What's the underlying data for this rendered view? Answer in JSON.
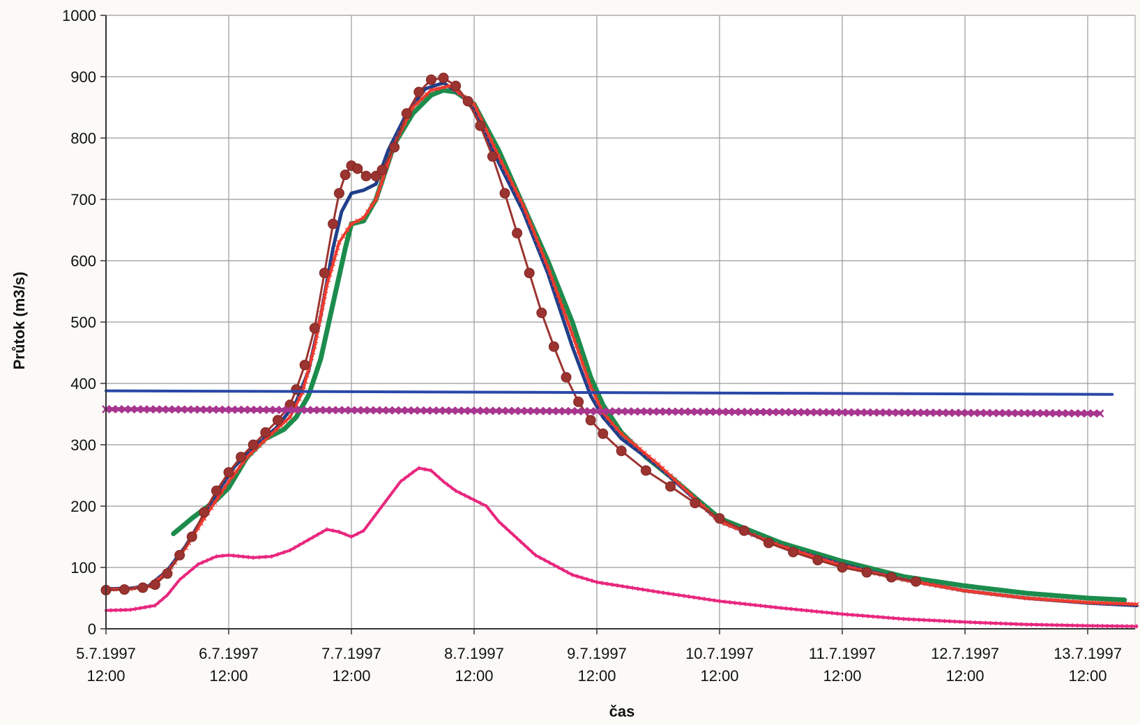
{
  "chart_data": {
    "type": "line",
    "title": "",
    "xlabel": "čas",
    "ylabel": "Průtok (m3/s)",
    "ylim": [
      0,
      1000
    ],
    "yticks": [
      0,
      100,
      200,
      300,
      400,
      500,
      600,
      700,
      800,
      900,
      1000
    ],
    "xlim": [
      0,
      8.4
    ],
    "x_unit": "days from 5.7.1997 12:00",
    "xticks": [
      {
        "x": 0,
        "label": [
          "5.7.1997",
          "12:00"
        ]
      },
      {
        "x": 1,
        "label": [
          "6.7.1997",
          "12:00"
        ]
      },
      {
        "x": 2,
        "label": [
          "7.7.1997",
          "12:00"
        ]
      },
      {
        "x": 3,
        "label": [
          "8.7.1997",
          "12:00"
        ]
      },
      {
        "x": 4,
        "label": [
          "9.7.1997",
          "12:00"
        ]
      },
      {
        "x": 5,
        "label": [
          "10.7.1997",
          "12:00"
        ]
      },
      {
        "x": 6,
        "label": [
          "11.7.1997",
          "12:00"
        ]
      },
      {
        "x": 7,
        "label": [
          "12.7.1997",
          "12:00"
        ]
      },
      {
        "x": 8,
        "label": [
          "13.7.1997",
          "12:00"
        ]
      }
    ],
    "grid": true,
    "legend": "none",
    "series": [
      {
        "color": "#e8277e",
        "marker": "small-dash",
        "width": 4,
        "points": [
          [
            0,
            30
          ],
          [
            0.2,
            31
          ],
          [
            0.4,
            38
          ],
          [
            0.5,
            55
          ],
          [
            0.6,
            80
          ],
          [
            0.75,
            105
          ],
          [
            0.9,
            118
          ],
          [
            1.0,
            120
          ],
          [
            1.2,
            116
          ],
          [
            1.35,
            118
          ],
          [
            1.5,
            128
          ],
          [
            1.65,
            145
          ],
          [
            1.8,
            162
          ],
          [
            1.9,
            158
          ],
          [
            2.0,
            150
          ],
          [
            2.1,
            160
          ],
          [
            2.25,
            200
          ],
          [
            2.4,
            240
          ],
          [
            2.5,
            255
          ],
          [
            2.55,
            262
          ],
          [
            2.65,
            258
          ],
          [
            2.75,
            240
          ],
          [
            2.85,
            225
          ],
          [
            3.0,
            210
          ],
          [
            3.1,
            200
          ],
          [
            3.2,
            175
          ],
          [
            3.5,
            120
          ],
          [
            3.8,
            88
          ],
          [
            4.0,
            76
          ],
          [
            4.5,
            60
          ],
          [
            5.0,
            45
          ],
          [
            5.5,
            34
          ],
          [
            6.0,
            24
          ],
          [
            6.5,
            16
          ],
          [
            7.0,
            11
          ],
          [
            7.5,
            7
          ],
          [
            8.0,
            5
          ],
          [
            8.4,
            4
          ]
        ]
      },
      {
        "color": "#1c8c4c",
        "marker": "none",
        "width": 7,
        "points": [
          [
            0.55,
            155
          ],
          [
            0.7,
            180
          ],
          [
            0.9,
            210
          ],
          [
            1.0,
            230
          ],
          [
            1.15,
            280
          ],
          [
            1.3,
            310
          ],
          [
            1.45,
            325
          ],
          [
            1.55,
            345
          ],
          [
            1.65,
            380
          ],
          [
            1.75,
            440
          ],
          [
            1.85,
            530
          ],
          [
            1.95,
            620
          ],
          [
            2.0,
            660
          ],
          [
            2.1,
            665
          ],
          [
            2.2,
            700
          ],
          [
            2.35,
            790
          ],
          [
            2.5,
            840
          ],
          [
            2.65,
            870
          ],
          [
            2.75,
            878
          ],
          [
            2.85,
            875
          ],
          [
            3.0,
            855
          ],
          [
            3.2,
            780
          ],
          [
            3.4,
            690
          ],
          [
            3.6,
            600
          ],
          [
            3.8,
            500
          ],
          [
            3.95,
            410
          ],
          [
            4.05,
            365
          ],
          [
            4.2,
            320
          ],
          [
            4.4,
            280
          ],
          [
            4.6,
            248
          ],
          [
            5.0,
            180
          ],
          [
            5.5,
            140
          ],
          [
            6.0,
            110
          ],
          [
            6.5,
            85
          ],
          [
            7.0,
            70
          ],
          [
            7.5,
            58
          ],
          [
            8.0,
            50
          ],
          [
            8.3,
            47
          ]
        ]
      },
      {
        "color": "#1f3f8a",
        "marker": "none",
        "width": 5,
        "points": [
          [
            0,
            65
          ],
          [
            0.2,
            66
          ],
          [
            0.35,
            70
          ],
          [
            0.5,
            95
          ],
          [
            0.65,
            135
          ],
          [
            0.8,
            185
          ],
          [
            0.95,
            235
          ],
          [
            1.05,
            265
          ],
          [
            1.2,
            295
          ],
          [
            1.4,
            330
          ],
          [
            1.55,
            370
          ],
          [
            1.65,
            420
          ],
          [
            1.75,
            510
          ],
          [
            1.85,
            620
          ],
          [
            1.92,
            680
          ],
          [
            2.0,
            710
          ],
          [
            2.1,
            715
          ],
          [
            2.2,
            725
          ],
          [
            2.3,
            780
          ],
          [
            2.45,
            840
          ],
          [
            2.6,
            880
          ],
          [
            2.75,
            890
          ],
          [
            2.9,
            870
          ],
          [
            3.0,
            845
          ],
          [
            3.2,
            760
          ],
          [
            3.4,
            680
          ],
          [
            3.6,
            580
          ],
          [
            3.8,
            460
          ],
          [
            3.95,
            380
          ],
          [
            4.05,
            345
          ],
          [
            4.2,
            310
          ],
          [
            4.5,
            265
          ],
          [
            5.0,
            175
          ],
          [
            5.5,
            135
          ],
          [
            6.0,
            105
          ],
          [
            6.5,
            80
          ],
          [
            7.0,
            62
          ],
          [
            7.5,
            50
          ],
          [
            8.0,
            42
          ],
          [
            8.4,
            38
          ]
        ]
      },
      {
        "color": "#ee3b2e",
        "marker": "small-x",
        "width": 4,
        "points": [
          [
            0,
            64
          ],
          [
            0.2,
            65
          ],
          [
            0.35,
            69
          ],
          [
            0.5,
            92
          ],
          [
            0.65,
            132
          ],
          [
            0.8,
            180
          ],
          [
            1.0,
            240
          ],
          [
            1.15,
            280
          ],
          [
            1.35,
            318
          ],
          [
            1.5,
            345
          ],
          [
            1.6,
            385
          ],
          [
            1.7,
            460
          ],
          [
            1.8,
            560
          ],
          [
            1.9,
            630
          ],
          [
            2.0,
            660
          ],
          [
            2.1,
            670
          ],
          [
            2.2,
            700
          ],
          [
            2.35,
            790
          ],
          [
            2.5,
            850
          ],
          [
            2.65,
            878
          ],
          [
            2.8,
            885
          ],
          [
            3.0,
            855
          ],
          [
            3.2,
            770
          ],
          [
            3.4,
            690
          ],
          [
            3.6,
            590
          ],
          [
            3.8,
            480
          ],
          [
            3.95,
            395
          ],
          [
            4.05,
            352
          ],
          [
            4.2,
            318
          ],
          [
            4.5,
            268
          ],
          [
            5.0,
            175
          ],
          [
            5.5,
            135
          ],
          [
            6.0,
            103
          ],
          [
            6.5,
            80
          ],
          [
            7.0,
            62
          ],
          [
            7.5,
            50
          ],
          [
            8.0,
            43
          ],
          [
            8.4,
            40
          ]
        ]
      },
      {
        "color": "#9b3430",
        "marker": "big-dot",
        "width": 3,
        "points": [
          [
            0,
            63
          ],
          [
            0.15,
            64
          ],
          [
            0.3,
            67
          ],
          [
            0.4,
            72
          ],
          [
            0.5,
            90
          ],
          [
            0.6,
            120
          ],
          [
            0.7,
            150
          ],
          [
            0.8,
            190
          ],
          [
            0.9,
            225
          ],
          [
            1.0,
            255
          ],
          [
            1.1,
            280
          ],
          [
            1.2,
            300
          ],
          [
            1.3,
            320
          ],
          [
            1.4,
            340
          ],
          [
            1.5,
            365
          ],
          [
            1.55,
            390
          ],
          [
            1.62,
            430
          ],
          [
            1.7,
            490
          ],
          [
            1.78,
            580
          ],
          [
            1.85,
            660
          ],
          [
            1.9,
            710
          ],
          [
            1.95,
            740
          ],
          [
            2.0,
            755
          ],
          [
            2.05,
            750
          ],
          [
            2.12,
            738
          ],
          [
            2.2,
            738
          ],
          [
            2.25,
            748
          ],
          [
            2.35,
            785
          ],
          [
            2.45,
            840
          ],
          [
            2.55,
            875
          ],
          [
            2.65,
            895
          ],
          [
            2.75,
            898
          ],
          [
            2.85,
            885
          ],
          [
            2.95,
            860
          ],
          [
            3.05,
            820
          ],
          [
            3.15,
            770
          ],
          [
            3.25,
            710
          ],
          [
            3.35,
            645
          ],
          [
            3.45,
            580
          ],
          [
            3.55,
            515
          ],
          [
            3.65,
            460
          ],
          [
            3.75,
            410
          ],
          [
            3.85,
            370
          ],
          [
            3.95,
            340
          ],
          [
            4.05,
            318
          ],
          [
            4.2,
            290
          ],
          [
            4.4,
            258
          ],
          [
            4.6,
            232
          ],
          [
            4.8,
            205
          ],
          [
            5.0,
            180
          ],
          [
            5.2,
            160
          ],
          [
            5.4,
            140
          ],
          [
            5.6,
            125
          ],
          [
            5.8,
            112
          ],
          [
            6.0,
            100
          ],
          [
            6.2,
            92
          ],
          [
            6.4,
            84
          ],
          [
            6.6,
            77
          ]
        ]
      },
      {
        "color": "#2948a8",
        "marker": "none",
        "width": 4,
        "points": [
          [
            0,
            388
          ],
          [
            8.2,
            382
          ]
        ]
      },
      {
        "color": "#a8368f",
        "marker": "x-dense",
        "width": 6,
        "points": [
          [
            0,
            358
          ],
          [
            8.1,
            351
          ]
        ]
      }
    ]
  }
}
